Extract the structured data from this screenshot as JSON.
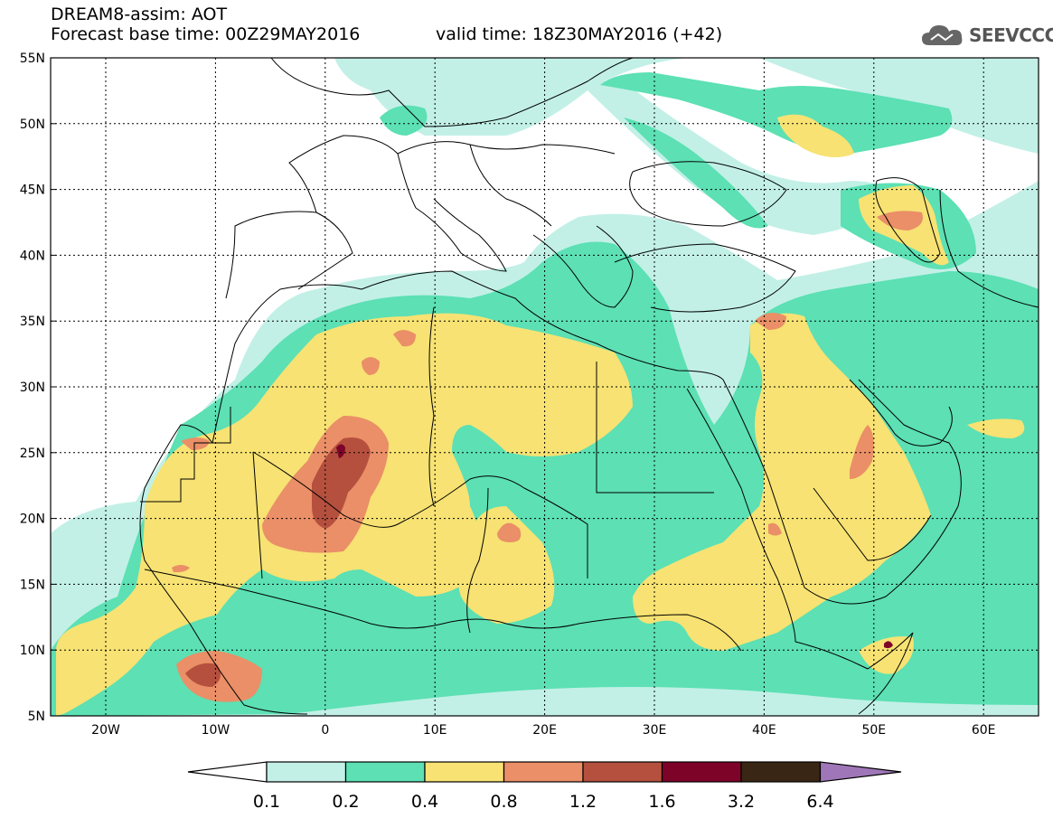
{
  "header": {
    "title": "DREAM8-assim: AOT",
    "base_time": "Forecast base time: 00Z29MAY2016",
    "valid_time": "valid time: 18Z30MAY2016 (+42)",
    "logo_text": "SEEVCCC"
  },
  "axes": {
    "lat_labels": [
      "55N",
      "50N",
      "45N",
      "40N",
      "35N",
      "30N",
      "25N",
      "20N",
      "15N",
      "10N",
      "5N"
    ],
    "lon_labels": [
      "20W",
      "10W",
      "0",
      "10E",
      "20E",
      "30E",
      "40E",
      "50E",
      "60E"
    ]
  },
  "colorbar": {
    "labels": [
      "0.1",
      "0.2",
      "0.4",
      "0.8",
      "1.2",
      "1.6",
      "3.2",
      "6.4"
    ],
    "colors": [
      "#c2f0e6",
      "#5ce0b4",
      "#f7e273",
      "#ea8f67",
      "#b5503e",
      "#7e0328",
      "#3a2614",
      "#9f77b8"
    ]
  },
  "palette": {
    "l1": "#c2f0e6",
    "l2": "#5ce0b4",
    "l3": "#f7e273",
    "l4": "#ea8f67",
    "l5": "#b5503e",
    "l6": "#7e0328",
    "border": "#000000"
  }
}
